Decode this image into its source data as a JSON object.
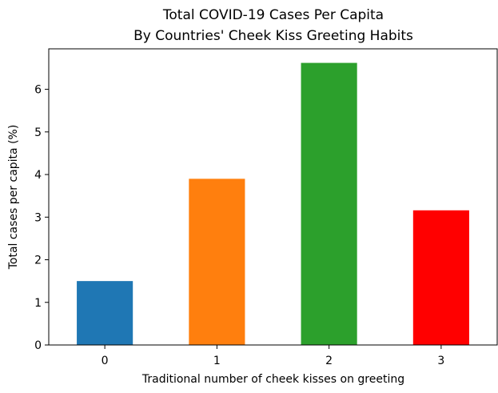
{
  "chart_data": {
    "type": "bar",
    "title_lines": [
      "Total COVID-19 Cases Per Capita",
      "By Countries' Cheek Kiss Greeting Habits"
    ],
    "xlabel": "Traditional number of cheek kisses on greeting",
    "ylabel": "Total cases per capita (%)",
    "categories": [
      "0",
      "1",
      "2",
      "3"
    ],
    "values": [
      1.5,
      3.9,
      6.62,
      3.16
    ],
    "colors": [
      "#1f77b4",
      "#ff7f0e",
      "#2ca02c",
      "#ff0000"
    ],
    "ylim": [
      0,
      6.95
    ],
    "yticks": [
      0,
      1,
      2,
      3,
      4,
      5,
      6
    ],
    "grid": false,
    "legend": "none"
  }
}
